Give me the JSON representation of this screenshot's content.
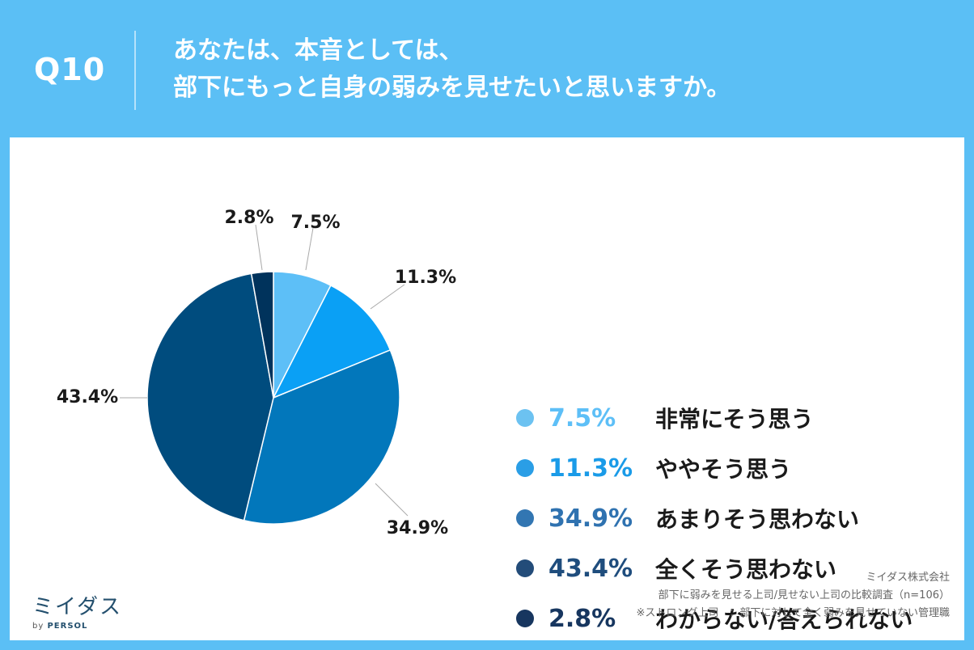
{
  "header": {
    "question_number": "Q10",
    "title_line1": "あなたは、本音としては、",
    "title_line2": "部下にもっと自身の弱みを見せたいと思いますか。"
  },
  "chart_data": {
    "type": "pie",
    "start": "top, clockwise",
    "slices": [
      {
        "label": "非常にそう思う",
        "value": 7.5,
        "display": "7.5%",
        "color": "#5dbff7",
        "legend_text_color": "#5dbff7"
      },
      {
        "label": "ややそう思う",
        "value": 11.3,
        "display": "11.3%",
        "color": "#0aa0f5",
        "legend_text_color": "#1a9be8"
      },
      {
        "label": "あまりそう思わない",
        "value": 34.9,
        "display": "34.9%",
        "color": "#0277bb",
        "legend_text_color": "#2f72b0"
      },
      {
        "label": "全くそう思わない",
        "value": 43.4,
        "display": "43.4%",
        "color": "#004c7e",
        "legend_text_color": "#1f4d7d"
      },
      {
        "label": "わからない/答えられない",
        "value": 2.8,
        "display": "2.8%",
        "color": "#00335c",
        "legend_text_color": "#17365f"
      }
    ]
  },
  "legend": {
    "dot_colors": [
      "#6cc2f1",
      "#2a9ee6",
      "#3276b2",
      "#234c79",
      "#17365f"
    ]
  },
  "logo": {
    "name": "ミイダス",
    "by": "by",
    "brand": "PERSOL"
  },
  "footer": {
    "company": "ミイダス株式会社",
    "survey": "部下に弱みを見せる上司/見せない上司の比較調査（n=106）",
    "note": "※ストロング上司　：部下に対して全く弱みを見せていない管理職"
  }
}
